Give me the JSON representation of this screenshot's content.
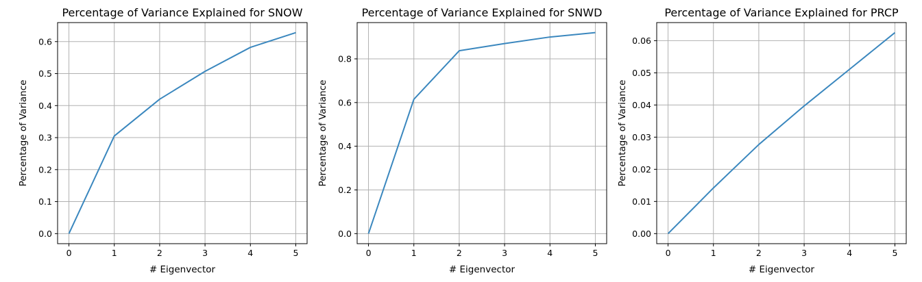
{
  "chart_data": [
    {
      "type": "line",
      "title": "Percentage of Variance Explained for SNOW",
      "xlabel": "# Eigenvector",
      "ylabel": "Percentage of Variance",
      "x": [
        0,
        1,
        2,
        3,
        4,
        5
      ],
      "series": [
        {
          "values": [
            0.0,
            0.305,
            0.42,
            0.507,
            0.582,
            0.628
          ]
        }
      ],
      "xticks": [
        0,
        1,
        2,
        3,
        4,
        5
      ],
      "yticks": [
        0.0,
        0.1,
        0.2,
        0.3,
        0.4,
        0.5,
        0.6
      ],
      "ytick_labels": [
        "0.0",
        "0.1",
        "0.2",
        "0.3",
        "0.4",
        "0.5",
        "0.6"
      ],
      "xlim": [
        -0.25,
        5.25
      ],
      "ylim": [
        -0.0314,
        0.6594
      ],
      "grid": true,
      "color": "#3a87be"
    },
    {
      "type": "line",
      "title": "Percentage of Variance Explained for SNWD",
      "xlabel": "# Eigenvector",
      "ylabel": "Percentage of Variance",
      "x": [
        0,
        1,
        2,
        3,
        4,
        5
      ],
      "series": [
        {
          "values": [
            0.0,
            0.615,
            0.837,
            0.87,
            0.9,
            0.92
          ]
        }
      ],
      "xticks": [
        0,
        1,
        2,
        3,
        4,
        5
      ],
      "yticks": [
        0.0,
        0.2,
        0.4,
        0.6,
        0.8
      ],
      "ytick_labels": [
        "0.0",
        "0.2",
        "0.4",
        "0.6",
        "0.8"
      ],
      "xlim": [
        -0.25,
        5.25
      ],
      "ylim": [
        -0.046,
        0.966
      ],
      "grid": true,
      "color": "#3a87be"
    },
    {
      "type": "line",
      "title": "Percentage of Variance Explained for PRCP",
      "xlabel": "# Eigenvector",
      "ylabel": "Percentage of Variance",
      "x": [
        0,
        1,
        2,
        3,
        4,
        5
      ],
      "series": [
        {
          "values": [
            0.0,
            0.0142,
            0.0277,
            0.0397,
            0.0511,
            0.0625
          ]
        }
      ],
      "xticks": [
        0,
        1,
        2,
        3,
        4,
        5
      ],
      "yticks": [
        0.0,
        0.01,
        0.02,
        0.03,
        0.04,
        0.05,
        0.06
      ],
      "ytick_labels": [
        "0.00",
        "0.01",
        "0.02",
        "0.03",
        "0.04",
        "0.05",
        "0.06"
      ],
      "xlim": [
        -0.25,
        5.25
      ],
      "ylim": [
        -0.003125,
        0.065625
      ],
      "grid": true,
      "color": "#3a87be"
    }
  ]
}
